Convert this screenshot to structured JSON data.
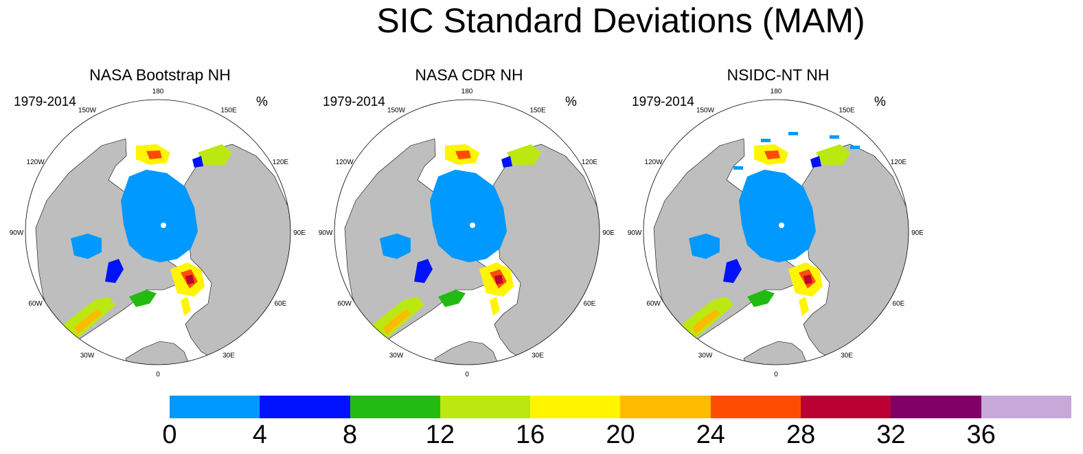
{
  "title": "SIC Standard Deviations (MAM)",
  "panels": [
    {
      "title": "NASA Bootstrap NH",
      "period": "1979-2014",
      "unit": "%"
    },
    {
      "title": "NASA CDR NH",
      "period": "1979-2014",
      "unit": "%"
    },
    {
      "title": "NSIDC-NT NH",
      "period": "1979-2014",
      "unit": "%"
    }
  ],
  "longitude_labels": [
    "180",
    "150E",
    "120E",
    "90E",
    "60E",
    "30E",
    "0",
    "30W",
    "60W",
    "90W",
    "120W",
    "150W"
  ],
  "colorbar": {
    "labels": [
      "0",
      "4",
      "8",
      "12",
      "16",
      "20",
      "24",
      "28",
      "32",
      "36"
    ],
    "colors": [
      "#0099ff",
      "#0011ff",
      "#22bb11",
      "#bbe811",
      "#fff500",
      "#ffbb00",
      "#ff4d00",
      "#bb0033",
      "#7f0066",
      "#c8a8d8"
    ]
  },
  "colors": {
    "land": "#bebebe",
    "ocean": "#ffffff"
  }
}
